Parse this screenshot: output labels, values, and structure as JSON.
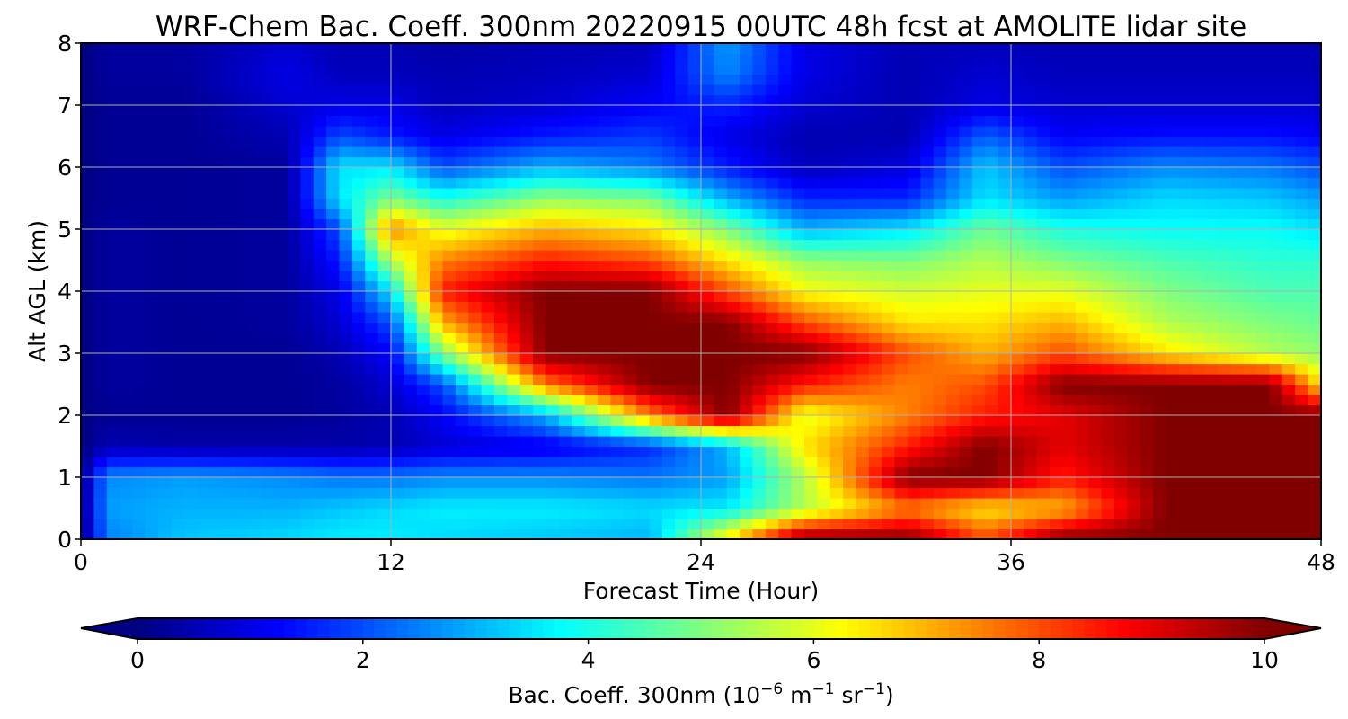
{
  "chart_data": {
    "type": "heatmap",
    "title": "WRF-Chem Bac. Coeff. 300nm  20220915 00UTC 48h fcst at AMOLITE lidar site",
    "xlabel": "Forecast Time (Hour)",
    "ylabel": "Alt AGL (km)",
    "xlim": [
      0,
      48
    ],
    "ylim": [
      0,
      8
    ],
    "x_ticks": [
      "0",
      "12",
      "24",
      "36",
      "48"
    ],
    "y_ticks": [
      "0",
      "1",
      "2",
      "3",
      "4",
      "5",
      "6",
      "7",
      "8"
    ],
    "grid": true,
    "colormap": "jet",
    "colorbar": {
      "orientation": "horizontal",
      "placement": "bottom",
      "extend": "both",
      "range": [
        0,
        10
      ],
      "ticks": [
        "0",
        "2",
        "4",
        "6",
        "8",
        "10"
      ],
      "label_main": "Bac. Coeff. 300nm  (10",
      "label_exp1": "−6",
      "label_unit1": " m",
      "label_exp2": "−1",
      "label_unit2": " sr",
      "label_exp3": "−1",
      "label_close": ")"
    },
    "x": [
      0,
      1,
      4,
      8,
      10,
      12,
      14,
      18,
      22,
      25,
      28,
      32,
      35,
      38,
      42,
      46,
      48
    ],
    "y": [
      0,
      0.5,
      1,
      1.5,
      2,
      2.5,
      3,
      3.5,
      4,
      4.5,
      5,
      5.5,
      6,
      6.5,
      7,
      7.5,
      8
    ],
    "z": [
      [
        0,
        2.5,
        3.2,
        3.4,
        3.6,
        3.6,
        3.4,
        3.2,
        3.0,
        6.5,
        10,
        10,
        8,
        10,
        10,
        10,
        10
      ],
      [
        0,
        2.8,
        3.0,
        3.0,
        3.2,
        3.4,
        3.6,
        3.6,
        3.4,
        3.6,
        5.5,
        7.5,
        6.5,
        7.0,
        10,
        10,
        10
      ],
      [
        0,
        2.6,
        2.8,
        2.6,
        2.4,
        2.4,
        2.6,
        2.6,
        2.4,
        2.8,
        5.5,
        10,
        10,
        8.5,
        10,
        10,
        10
      ],
      [
        0,
        0.5,
        0.4,
        0.4,
        0.4,
        0.5,
        0.8,
        1.0,
        1.6,
        3.0,
        6.5,
        8.5,
        10,
        9.0,
        10,
        10,
        10
      ],
      [
        0,
        0.2,
        0.2,
        0.2,
        0.3,
        0.5,
        1.2,
        3.0,
        7.5,
        10,
        6.0,
        7.5,
        8.5,
        9.0,
        10,
        10,
        10
      ],
      [
        0,
        0.3,
        0.2,
        0.2,
        0.3,
        0.8,
        2.0,
        7.5,
        10,
        10,
        8.5,
        7.5,
        8.0,
        10,
        10,
        10,
        6.5
      ],
      [
        0,
        0.3,
        0.2,
        0.2,
        0.5,
        1.2,
        5.0,
        10,
        10,
        10,
        10,
        8.0,
        7.0,
        8.0,
        6.5,
        5.5,
        5.2
      ],
      [
        0,
        0.3,
        0.2,
        0.3,
        0.8,
        2.0,
        7.0,
        10,
        10,
        10,
        8.0,
        6.5,
        6.5,
        7.0,
        5.5,
        5.0,
        4.8
      ],
      [
        0,
        0.3,
        0.2,
        0.3,
        1.0,
        3.5,
        8.5,
        10,
        10,
        8.0,
        6.2,
        5.8,
        6.0,
        6.0,
        5.0,
        4.5,
        4.5
      ],
      [
        0,
        0.3,
        0.2,
        0.3,
        1.5,
        5.5,
        7.5,
        8.5,
        8.0,
        6.5,
        5.2,
        5.0,
        5.5,
        5.0,
        4.5,
        4.2,
        4.2
      ],
      [
        0,
        0.3,
        0.2,
        0.3,
        2.0,
        7.5,
        6.0,
        7.0,
        6.5,
        5.0,
        3.0,
        3.5,
        4.8,
        4.0,
        3.8,
        3.8,
        3.5
      ],
      [
        0,
        0.2,
        0.2,
        0.3,
        3.5,
        5.0,
        4.0,
        5.2,
        5.0,
        3.0,
        1.6,
        1.6,
        3.5,
        2.8,
        3.4,
        3.2,
        2.8
      ],
      [
        0,
        0.2,
        0.2,
        0.3,
        3.5,
        3.5,
        2.0,
        3.0,
        2.5,
        1.5,
        0.6,
        0.9,
        3.2,
        2.0,
        2.6,
        2.4,
        2.0
      ],
      [
        0,
        0.2,
        0.2,
        0.5,
        2.0,
        1.5,
        1.0,
        1.5,
        1.8,
        1.0,
        0.5,
        0.5,
        2.2,
        1.2,
        1.4,
        1.4,
        1.2
      ],
      [
        0,
        0.2,
        0.2,
        0.8,
        1.0,
        1.0,
        0.6,
        0.8,
        1.2,
        1.6,
        0.8,
        0.5,
        1.0,
        0.8,
        0.8,
        0.8,
        0.8
      ],
      [
        0,
        0.3,
        0.3,
        1.0,
        0.6,
        0.6,
        0.5,
        0.6,
        0.8,
        2.6,
        1.0,
        0.5,
        0.8,
        0.6,
        0.6,
        0.6,
        0.6
      ],
      [
        0,
        0.3,
        0.3,
        0.8,
        0.5,
        0.5,
        0.4,
        0.5,
        0.6,
        2.8,
        1.0,
        0.5,
        0.6,
        0.5,
        0.5,
        0.5,
        0.5
      ]
    ]
  }
}
